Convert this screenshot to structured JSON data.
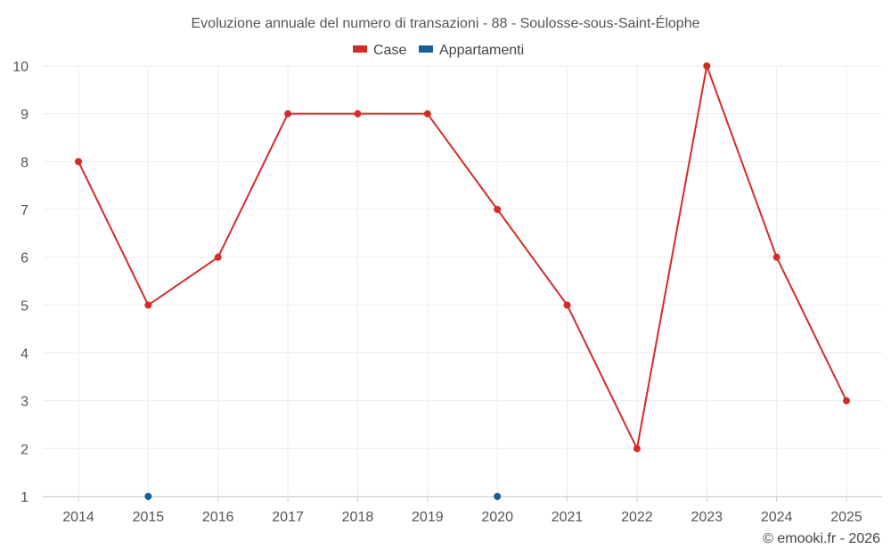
{
  "chart_data": {
    "type": "line",
    "title": "Evoluzione annuale del numero di transazioni - 88 - Soulosse-sous-Saint-Élophe",
    "categories": [
      "2014",
      "2015",
      "2016",
      "2017",
      "2018",
      "2019",
      "2020",
      "2021",
      "2022",
      "2023",
      "2024",
      "2025"
    ],
    "series": [
      {
        "name": "Case",
        "color": "#d42a2a",
        "values": [
          8,
          5,
          6,
          9,
          9,
          9,
          7,
          5,
          2,
          10,
          6,
          3
        ]
      },
      {
        "name": "Appartamenti",
        "color": "#1a5e96",
        "values": [
          null,
          1,
          null,
          null,
          null,
          null,
          1,
          null,
          null,
          null,
          null,
          null
        ]
      }
    ],
    "ylim": [
      1,
      10
    ],
    "yticks": [
      "1",
      "2",
      "3",
      "4",
      "5",
      "6",
      "7",
      "8",
      "9",
      "10"
    ],
    "grid": true,
    "legend_position": "top-center",
    "xlabel": "",
    "ylabel": ""
  },
  "credit": "© emooki.fr - 2026"
}
